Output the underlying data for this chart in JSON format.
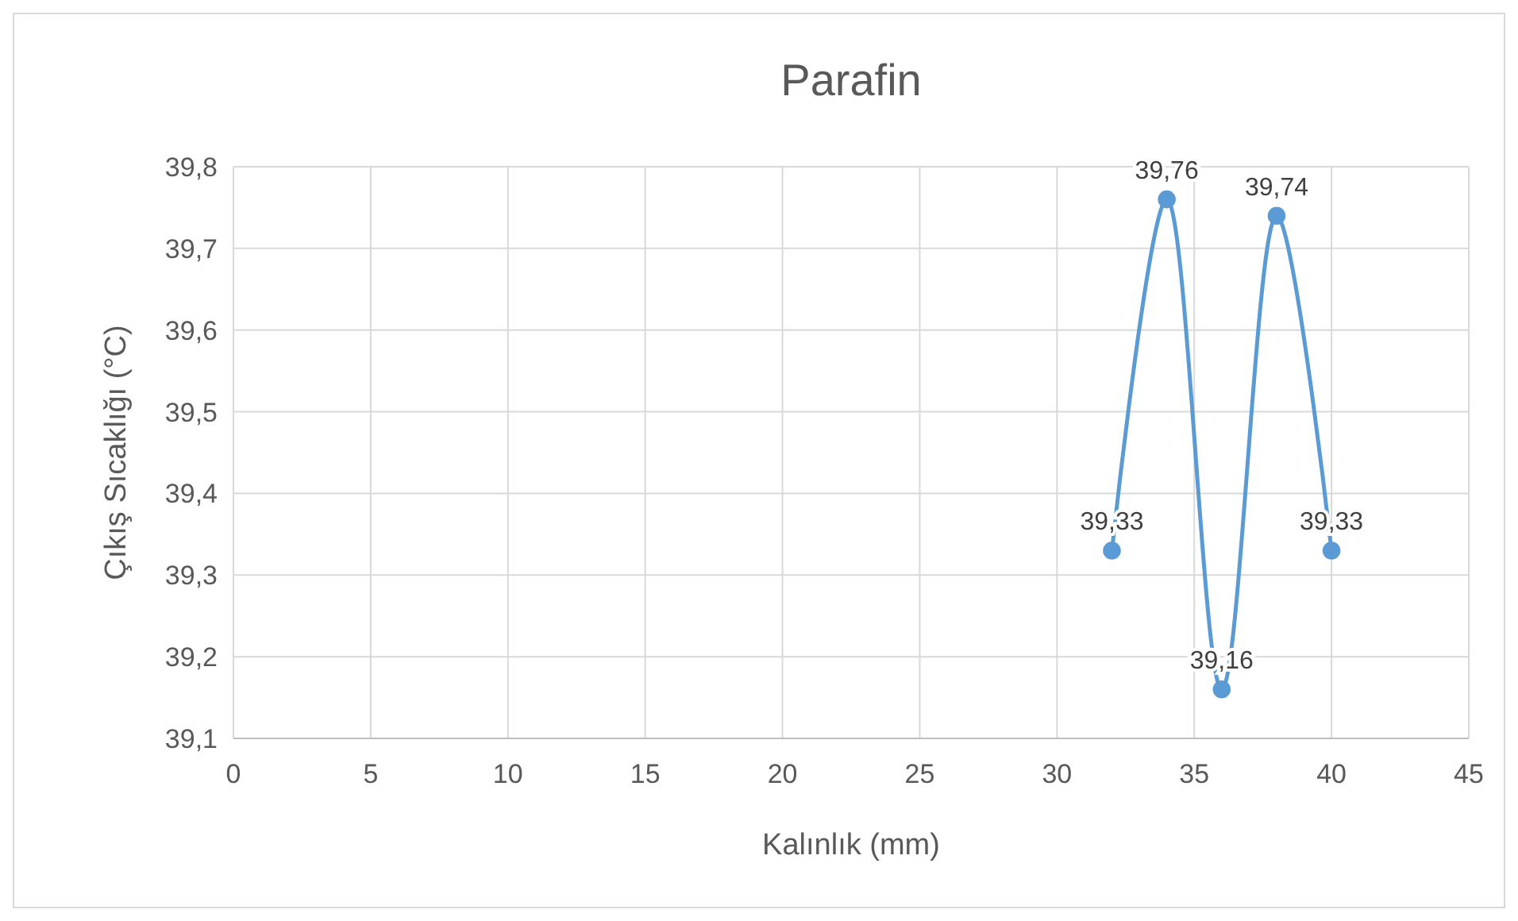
{
  "chart_data": {
    "type": "line",
    "title": "Parafin",
    "xlabel": "Kalınlık (mm)",
    "ylabel": "Çıkış Sıcaklığı (°C)",
    "x": [
      32,
      34,
      36,
      38,
      40
    ],
    "series": [
      {
        "color": "#5b9bd5",
        "values": [
          39.33,
          39.76,
          39.16,
          39.74,
          39.33
        ],
        "value_labels": [
          "39,33",
          "39,76",
          "39,16",
          "39,74",
          "39,33"
        ]
      }
    ],
    "xlim": [
      0,
      45
    ],
    "xticks": [
      0,
      5,
      10,
      15,
      20,
      25,
      30,
      35,
      40,
      45
    ],
    "ylim": [
      39.1,
      39.8
    ],
    "yticks": [
      {
        "value": 39.1,
        "label": "39,1"
      },
      {
        "value": 39.2,
        "label": "39,2"
      },
      {
        "value": 39.3,
        "label": "39,3"
      },
      {
        "value": 39.4,
        "label": "39,4"
      },
      {
        "value": 39.5,
        "label": "39,5"
      },
      {
        "value": 39.6,
        "label": "39,6"
      },
      {
        "value": 39.7,
        "label": "39,7"
      },
      {
        "value": 39.8,
        "label": "39,8"
      }
    ],
    "grid": true,
    "marker": "circle",
    "line_style": "solid"
  }
}
